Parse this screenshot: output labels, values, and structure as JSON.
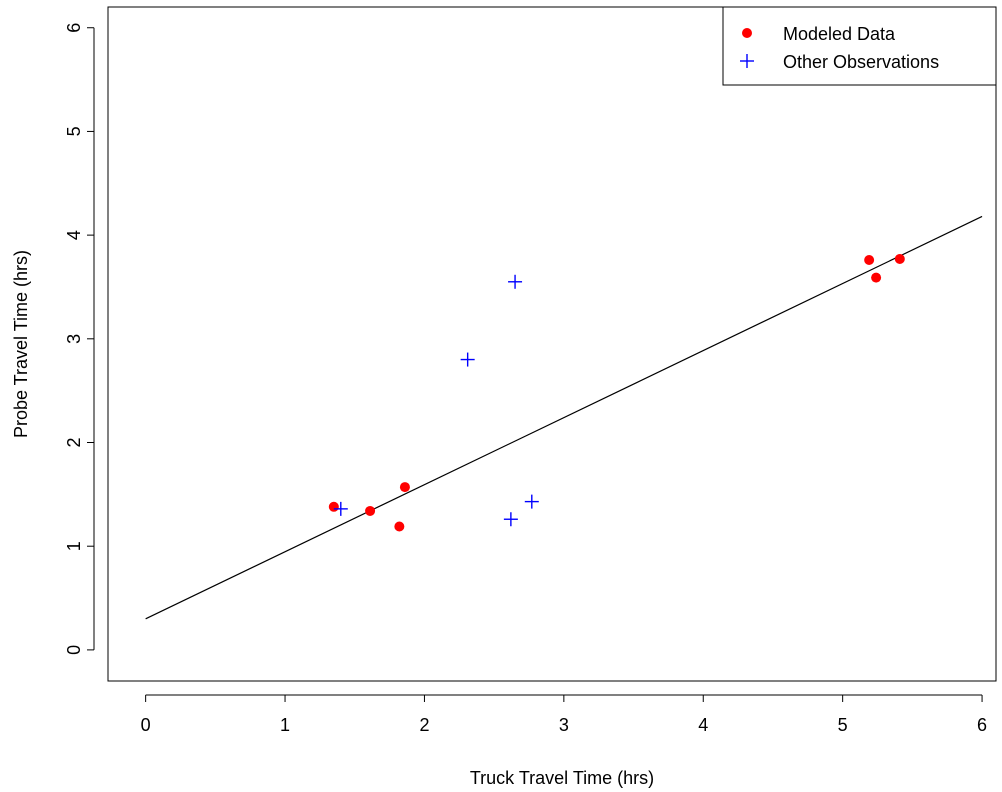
{
  "chart_data": {
    "type": "scatter",
    "title": "",
    "xlabel": "Truck Travel Time (hrs)",
    "ylabel": "Probe Travel Time (hrs)",
    "xlim": [
      -0.27,
      6.1
    ],
    "ylim": [
      -0.3,
      6.2
    ],
    "x_ticks": [
      0,
      1,
      2,
      3,
      4,
      5,
      6
    ],
    "y_ticks": [
      0,
      1,
      2,
      3,
      4,
      5,
      6
    ],
    "grid": false,
    "legend_position": "top-right",
    "series": [
      {
        "name": "Modeled Data",
        "marker": "filled-circle",
        "color": "#ff0000",
        "points": [
          {
            "x": 1.35,
            "y": 1.38
          },
          {
            "x": 1.61,
            "y": 1.34
          },
          {
            "x": 1.82,
            "y": 1.19
          },
          {
            "x": 1.86,
            "y": 1.57
          },
          {
            "x": 5.19,
            "y": 3.76
          },
          {
            "x": 5.24,
            "y": 3.59
          },
          {
            "x": 5.41,
            "y": 3.77
          }
        ]
      },
      {
        "name": "Other Observations",
        "marker": "plus",
        "color": "#0000ff",
        "points": [
          {
            "x": 1.4,
            "y": 1.36
          },
          {
            "x": 2.31,
            "y": 2.8
          },
          {
            "x": 2.62,
            "y": 1.26
          },
          {
            "x": 2.65,
            "y": 3.55
          },
          {
            "x": 2.77,
            "y": 1.43
          }
        ]
      }
    ],
    "fit_line": {
      "color": "#000000",
      "x": [
        0,
        6
      ],
      "y": [
        0.3,
        4.18
      ]
    }
  }
}
